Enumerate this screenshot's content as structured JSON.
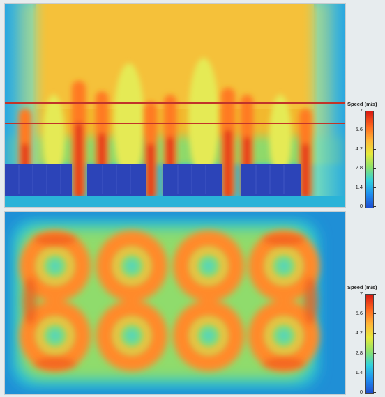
{
  "top_panel": {
    "colorbar": {
      "title": "Speed (m/s)",
      "ticks": [
        "7",
        "5.6",
        "4.2",
        "2.8",
        "1.4",
        "0"
      ],
      "min": 0,
      "max": 7
    }
  },
  "bottom_panel": {
    "colorbar": {
      "title": "Speed (m/s)",
      "ticks": [
        "7",
        "5.6",
        "4.2",
        "2.8",
        "1.4",
        "0"
      ],
      "min": 0,
      "max": 7
    }
  },
  "colors": {
    "low": "#1d4fd1",
    "mid": "#e6ea3b",
    "high": "#d91a12",
    "marker_line": "#c0342a"
  }
}
